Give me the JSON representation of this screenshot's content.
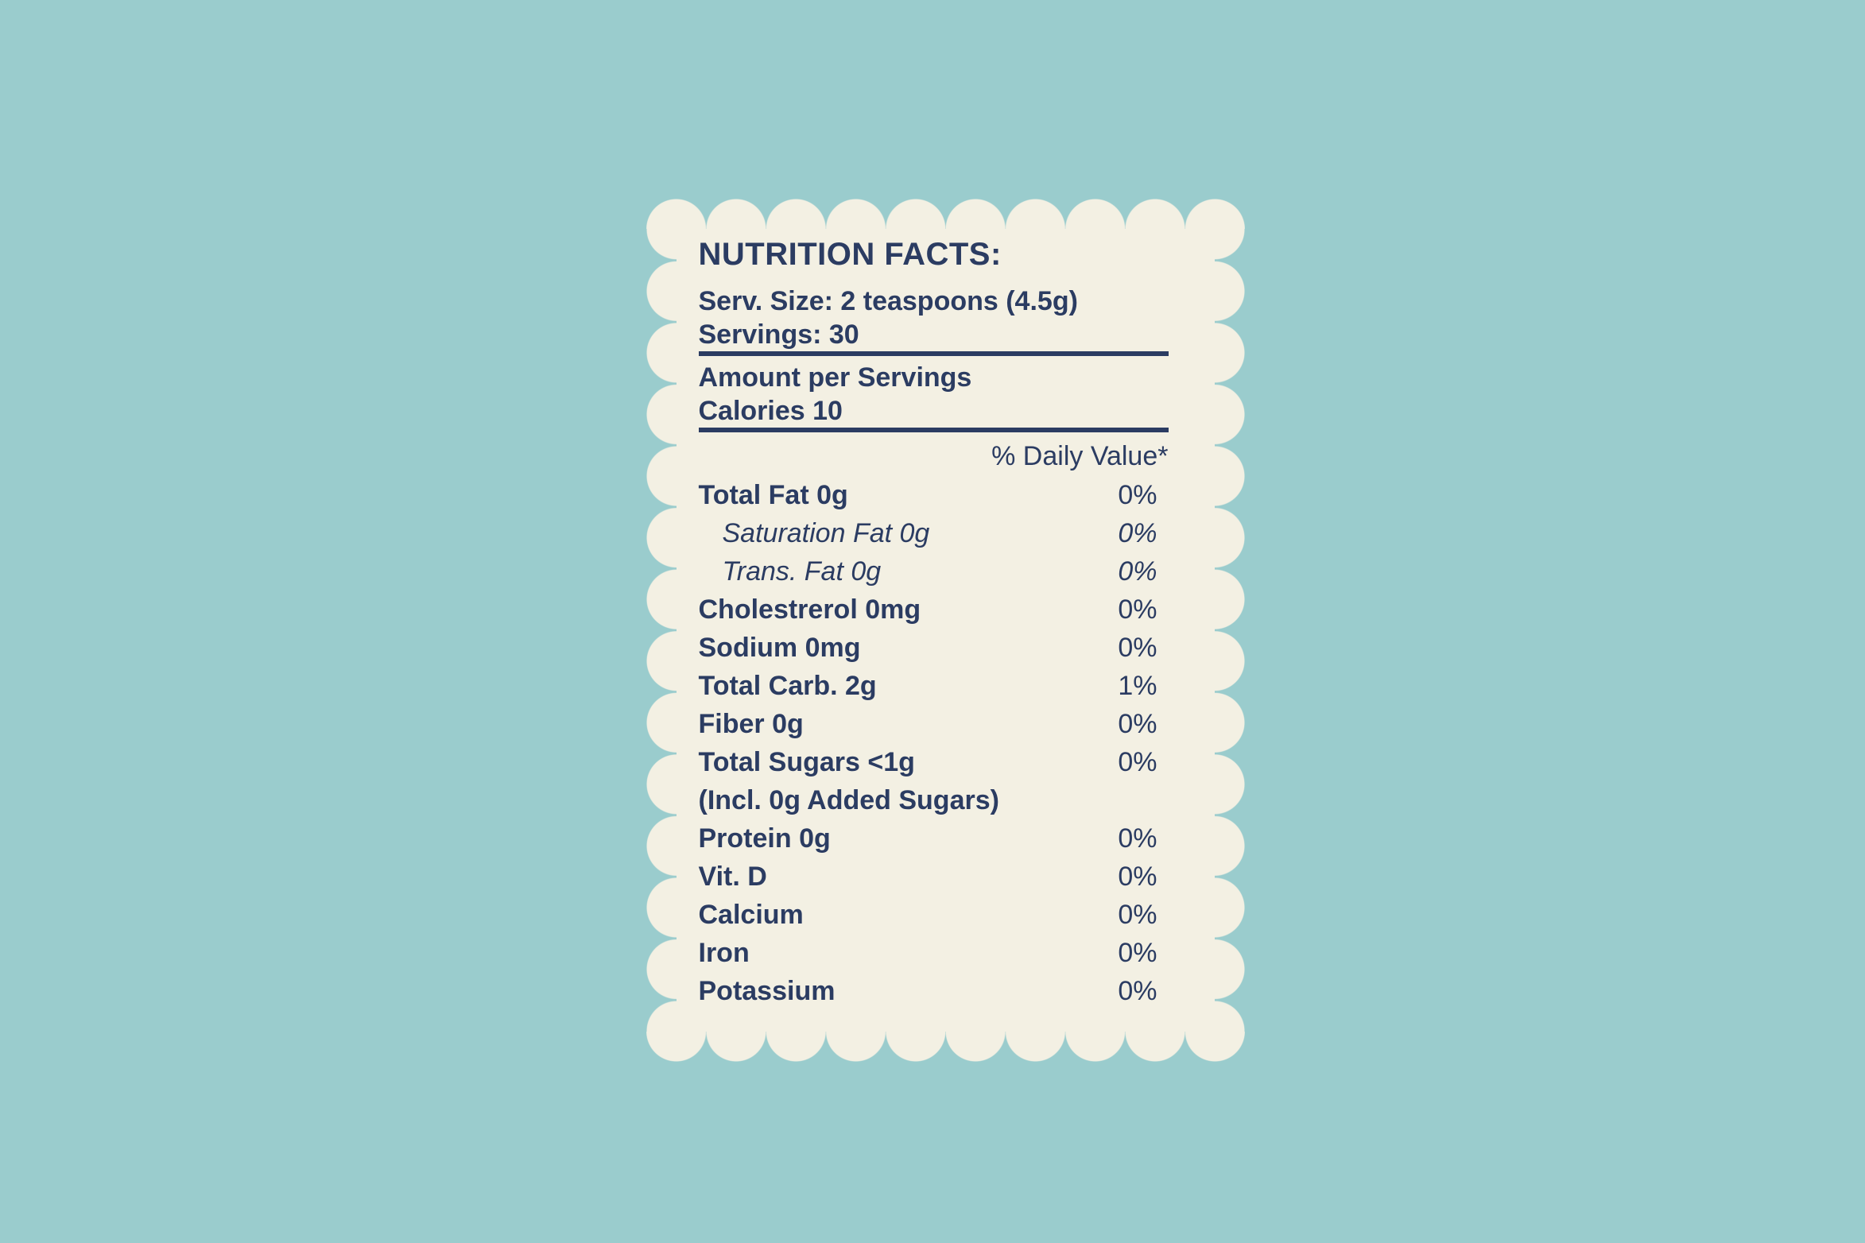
{
  "label": {
    "title": "NUTRITION FACTS:",
    "serving_size": "Serv. Size: 2 teaspoons (4.5g)",
    "servings": "Servings: 30",
    "amount_per": "Amount per Servings",
    "calories": "Calories 10",
    "daily_value_header": "% Daily Value*",
    "rows": [
      {
        "name": "Total Fat 0g",
        "value": "0%"
      },
      {
        "name": "Saturation Fat 0g",
        "value": "0%"
      },
      {
        "name": "Trans. Fat 0g",
        "value": "0%"
      },
      {
        "name": "Cholestrerol 0mg",
        "value": "0%"
      },
      {
        "name": "Sodium 0mg",
        "value": "0%"
      },
      {
        "name": "Total Carb. 2g",
        "value": "1%"
      },
      {
        "name": "Fiber 0g",
        "value": "0%"
      },
      {
        "name": "Total Sugars <1g",
        "value": "0%"
      },
      {
        "name": "(Incl. 0g Added Sugars)",
        "value": ""
      },
      {
        "name": "Protein 0g",
        "value": "0%"
      },
      {
        "name": "Vit. D",
        "value": "0%"
      },
      {
        "name": "Calcium",
        "value": "0%"
      },
      {
        "name": "Iron",
        "value": "0%"
      },
      {
        "name": "Potassium",
        "value": "0%"
      }
    ],
    "colors": {
      "background": "#9ACCCD",
      "card": "#F3F0E3",
      "text": "#2B3C62"
    }
  }
}
